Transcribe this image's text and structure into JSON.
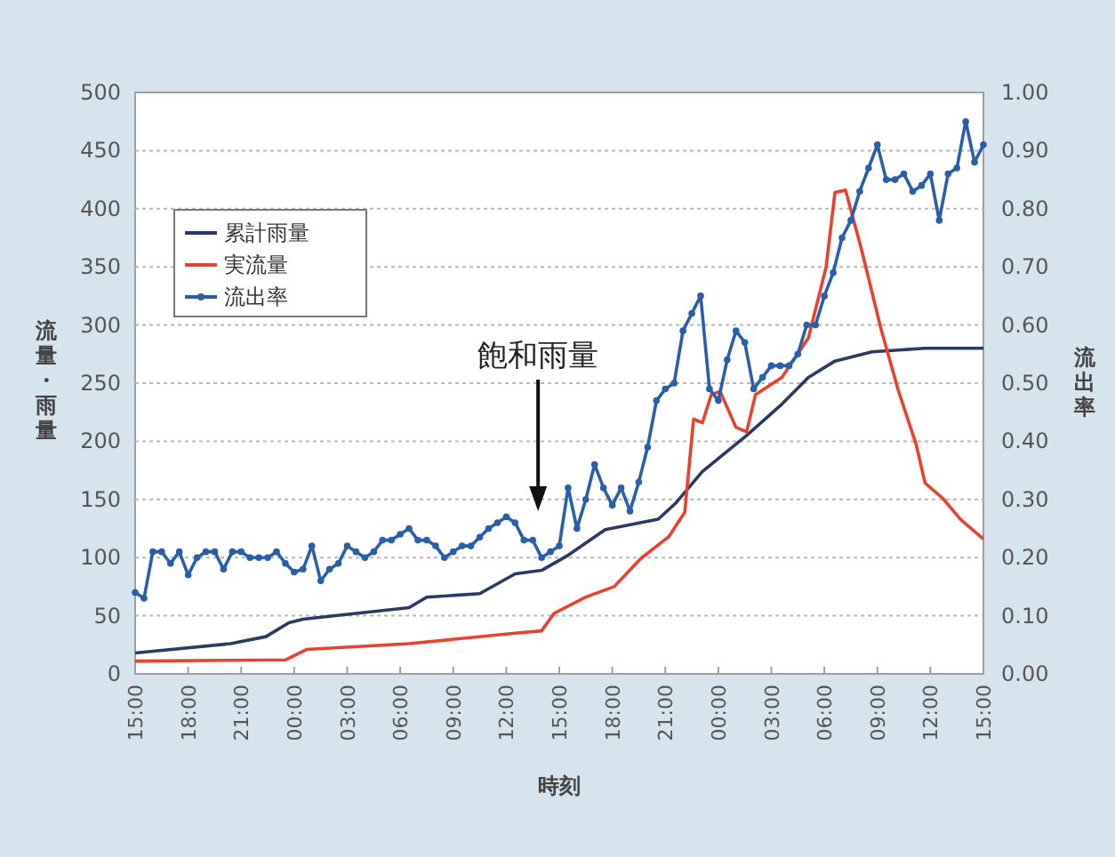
{
  "chart_data": {
    "type": "line",
    "xlabel": "時刻",
    "ylabel": "流量・雨量",
    "y2label": "流出率",
    "xlim": [
      "--01-01T15:00",
      "--01-03T15:00"
    ],
    "xticks": [
      {
        "value": "--01-01T15:00",
        "label": "15:00"
      },
      {
        "value": "--01-01T18:00",
        "label": "18:00"
      },
      {
        "value": "--01-01T21:00",
        "label": "21:00"
      },
      {
        "value": "--01-02T00:00",
        "label": "00:00"
      },
      {
        "value": "--01-02T03:00",
        "label": "03:00"
      },
      {
        "value": "--01-02T06:00",
        "label": "06:00"
      },
      {
        "value": "--01-02T09:00",
        "label": "09:00"
      },
      {
        "value": "--01-02T12:00",
        "label": "12:00"
      },
      {
        "value": "--01-02T15:00",
        "label": "15:00"
      },
      {
        "value": "--01-02T18:00",
        "label": "18:00"
      },
      {
        "value": "--01-02T21:00",
        "label": "21:00"
      },
      {
        "value": "--01-03T00:00",
        "label": "00:00"
      },
      {
        "value": "--01-03T03:00",
        "label": "03:00"
      },
      {
        "value": "--01-03T06:00",
        "label": "06:00"
      },
      {
        "value": "--01-03T09:00",
        "label": "09:00"
      },
      {
        "value": "--01-03T12:00",
        "label": "12:00"
      },
      {
        "value": "--01-03T15:00",
        "label": "15:00"
      }
    ],
    "ylim": [
      0,
      500
    ],
    "yticks": [
      0,
      50,
      100,
      150,
      200,
      250,
      300,
      350,
      400,
      450,
      500
    ],
    "y2lim": [
      0,
      1
    ],
    "y2ticks": [
      {
        "value": 0,
        "label": "0.00"
      },
      {
        "value": 0.1,
        "label": "0.10"
      },
      {
        "value": 0.2,
        "label": "0.20"
      },
      {
        "value": 0.3,
        "label": "0.30"
      },
      {
        "value": 0.4,
        "label": "0.40"
      },
      {
        "value": 0.5,
        "label": "0.50"
      },
      {
        "value": 0.6,
        "label": "0.60"
      },
      {
        "value": 0.7,
        "label": "0.70"
      },
      {
        "value": 0.8,
        "label": "0.80"
      },
      {
        "value": 0.9,
        "label": "0.90"
      },
      {
        "value": 1,
        "label": "1.00"
      }
    ],
    "grid": "y",
    "legend": "top left",
    "annotations": [
      "飽和雨量"
    ],
    "series": [
      {
        "name": "累計雨量",
        "color": "#2b3a63",
        "marker": "none",
        "x": [
          "--01-01T15:00",
          "--01-01T20:24",
          "--01-01T22:24",
          "--01-01T23:42",
          "--01-02T00:30",
          "--01-02T06:30",
          "--01-02T07:30",
          "--01-02T10:30",
          "--01-02T12:30",
          "--01-02T14:00",
          "--01-02T15:30",
          "--01-02T17:36",
          "--01-02T20:36",
          "--01-02T21:36",
          "--01-02T23:06",
          "--01-03T01:36",
          "--01-03T03:36",
          "--01-03T05:06",
          "--01-03T06:36",
          "--01-03T08:42",
          "--01-03T11:42",
          "--01-03T15:00"
        ],
        "values": [
          18,
          26,
          32,
          44,
          47,
          57,
          66,
          69,
          86,
          89,
          102,
          124,
          133,
          147,
          174,
          205,
          232,
          255,
          269,
          277,
          280,
          280
        ]
      },
      {
        "name": "実流量",
        "color": "#e8412e",
        "marker": "none",
        "x": [
          "--01-01T15:00",
          "--01-01T23:30",
          "--01-02T00:42",
          "--01-02T06:30",
          "--01-02T12:30",
          "--01-02T14:00",
          "--01-02T14:42",
          "--01-02T16:30",
          "--01-02T18:06",
          "--01-02T19:36",
          "--01-02T21:12",
          "--01-02T22:06",
          "--01-02T22:36",
          "--01-02T23:06",
          "--01-02T23:36",
          "--01-03T00:06",
          "--01-03T01:00",
          "--01-03T01:36",
          "--01-03T02:06",
          "--01-03T03:36",
          "--01-03T05:06",
          "--01-03T06:06",
          "--01-03T06:36",
          "--01-03T07:12",
          "--01-03T08:06",
          "--01-03T09:12",
          "--01-03T10:12",
          "--01-03T11:12",
          "--01-03T11:42",
          "--01-03T12:42",
          "--01-03T13:42",
          "--01-03T15:00"
        ],
        "values": [
          11,
          12,
          21,
          26,
          35,
          37,
          52,
          66,
          75,
          99,
          118,
          139,
          219,
          216,
          240,
          243,
          212,
          208,
          240,
          255,
          289,
          350,
          414,
          416,
          365,
          297,
          243,
          197,
          164,
          151,
          133,
          116
        ]
      },
      {
        "name": "流出率",
        "color": "#2a5ea8",
        "marker": "circle",
        "axis": "y2",
        "x": [
          "--01-01T15:00",
          "--01-01T15:30",
          "--01-01T16:00",
          "--01-01T16:30",
          "--01-01T17:00",
          "--01-01T17:30",
          "--01-01T18:00",
          "--01-01T18:30",
          "--01-01T19:00",
          "--01-01T19:30",
          "--01-01T20:00",
          "--01-01T20:30",
          "--01-01T21:00",
          "--01-01T21:30",
          "--01-01T22:00",
          "--01-01T22:30",
          "--01-01T23:00",
          "--01-01T23:30",
          "--01-02T00:00",
          "--01-02T00:30",
          "--01-02T01:00",
          "--01-02T01:30",
          "--01-02T02:00",
          "--01-02T02:30",
          "--01-02T03:00",
          "--01-02T03:30",
          "--01-02T04:00",
          "--01-02T04:30",
          "--01-02T05:00",
          "--01-02T05:30",
          "--01-02T06:00",
          "--01-02T06:30",
          "--01-02T07:00",
          "--01-02T07:30",
          "--01-02T08:00",
          "--01-02T08:30",
          "--01-02T09:00",
          "--01-02T09:30",
          "--01-02T10:00",
          "--01-02T10:30",
          "--01-02T11:00",
          "--01-02T11:30",
          "--01-02T12:00",
          "--01-02T12:30",
          "--01-02T13:00",
          "--01-02T13:30",
          "--01-02T14:00",
          "--01-02T14:30",
          "--01-02T15:00",
          "--01-02T15:30",
          "--01-02T16:00",
          "--01-02T16:30",
          "--01-02T17:00",
          "--01-02T17:30",
          "--01-02T18:00",
          "--01-02T18:30",
          "--01-02T19:00",
          "--01-02T19:30",
          "--01-02T20:00",
          "--01-02T20:30",
          "--01-02T21:00",
          "--01-02T21:30",
          "--01-02T22:00",
          "--01-02T22:30",
          "--01-02T23:00",
          "--01-02T23:30",
          "--01-03T00:00",
          "--01-03T00:30",
          "--01-03T01:00",
          "--01-03T01:30",
          "--01-03T02:00",
          "--01-03T02:30",
          "--01-03T03:00",
          "--01-03T03:30",
          "--01-03T04:00",
          "--01-03T04:30",
          "--01-03T05:00",
          "--01-03T05:30",
          "--01-03T06:00",
          "--01-03T06:30",
          "--01-03T07:00",
          "--01-03T07:30",
          "--01-03T08:00",
          "--01-03T08:30",
          "--01-03T09:00",
          "--01-03T09:30",
          "--01-03T10:00",
          "--01-03T10:30",
          "--01-03T11:00",
          "--01-03T11:30",
          "--01-03T12:00",
          "--01-03T12:30",
          "--01-03T13:00",
          "--01-03T13:30",
          "--01-03T14:00",
          "--01-03T14:30",
          "--01-03T15:00"
        ],
        "values": [
          0.14,
          0.13,
          0.21,
          0.21,
          0.19,
          0.21,
          0.17,
          0.2,
          0.21,
          0.21,
          0.18,
          0.21,
          0.21,
          0.2,
          0.2,
          0.2,
          0.21,
          0.19,
          0.175,
          0.18,
          0.22,
          0.16,
          0.18,
          0.19,
          0.22,
          0.21,
          0.2,
          0.21,
          0.23,
          0.23,
          0.24,
          0.25,
          0.23,
          0.23,
          0.22,
          0.2,
          0.21,
          0.22,
          0.22,
          0.235,
          0.25,
          0.26,
          0.27,
          0.26,
          0.23,
          0.23,
          0.2,
          0.21,
          0.22,
          0.32,
          0.25,
          0.3,
          0.36,
          0.32,
          0.29,
          0.32,
          0.28,
          0.33,
          0.39,
          0.47,
          0.49,
          0.5,
          0.59,
          0.62,
          0.65,
          0.49,
          0.47,
          0.54,
          0.59,
          0.57,
          0.49,
          0.51,
          0.53,
          0.53,
          0.53,
          0.55,
          0.6,
          0.6,
          0.65,
          0.69,
          0.75,
          0.78,
          0.83,
          0.87,
          0.91,
          0.85,
          0.85,
          0.86,
          0.83,
          0.84,
          0.86,
          0.78,
          0.86,
          0.87,
          0.95,
          0.88,
          0.91
        ]
      }
    ]
  }
}
